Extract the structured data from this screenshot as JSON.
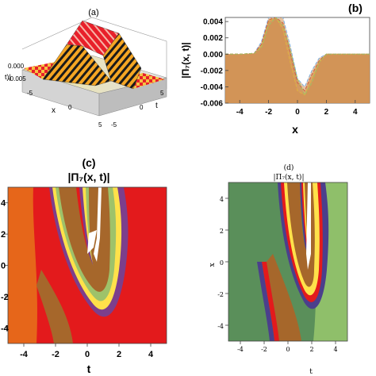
{
  "colors": {
    "background": "#ffffff",
    "checker_a": "#e8202a",
    "checker_b": "#f5c242",
    "stripe_dark": "#1a1a1a",
    "surface_floor": "#e0e0e0",
    "b_fill": "#cf8f50",
    "c_red": "#e31a1c",
    "c_orange": "#e6661a",
    "c_brown": "#a6672b",
    "d_green": "#5a8f5a",
    "d_lightgreen": "#8fbf6a",
    "d_red": "#e31a1c",
    "d_yellow": "#ffe14a",
    "d_blue": "#4b3f8c"
  },
  "chart_data": [
    {
      "panel": "a",
      "type": "surface3d",
      "title": "(a)",
      "xlabel": "x",
      "ylabel": "t",
      "zlabel": "t)|",
      "x_ticks": [
        "-5",
        "0",
        "5"
      ],
      "y_ticks": [
        "-5",
        "0",
        "5"
      ],
      "z_ticks": [
        "0.000",
        "-0.005"
      ]
    },
    {
      "panel": "b",
      "type": "line",
      "title": "(b)",
      "xlabel": "x",
      "ylabel": "|Π₇(x,  t)|",
      "xlim": [
        -5,
        5
      ],
      "ylim": [
        -0.006,
        0.0045
      ],
      "x_ticks": [
        "-4",
        "-2",
        "0",
        "2",
        "4"
      ],
      "y_ticks": [
        "0.004",
        "0.002",
        "0.000",
        "-0.002",
        "-0.004",
        "-0.006"
      ],
      "y_tick_values": [
        0.004,
        0.002,
        0,
        -0.002,
        -0.004,
        -0.006
      ],
      "x_tick_values": [
        -4,
        -2,
        0,
        2,
        4
      ],
      "x": [
        -5,
        -4,
        -3,
        -2.5,
        -2,
        -1.5,
        -1,
        -0.5,
        0,
        0.5,
        1,
        1.5,
        2,
        3,
        4,
        5
      ],
      "series": [
        {
          "values": [
            0,
            0,
            0.0001,
            0.0015,
            0.0045,
            0.0045,
            0.0045,
            0.001,
            -0.003,
            -0.004,
            -0.002,
            -0.0005,
            0,
            0,
            0,
            0
          ]
        },
        {
          "values": [
            0,
            0,
            0.0001,
            0.001,
            0.004,
            0.0045,
            0.003,
            -0.001,
            -0.0045,
            -0.005,
            -0.003,
            -0.001,
            0,
            0,
            0,
            0
          ]
        },
        {
          "values": [
            0,
            0,
            0.0001,
            0.0012,
            0.0042,
            0.0045,
            0.0038,
            0.0002,
            -0.0035,
            -0.0045,
            -0.0025,
            -0.0008,
            0,
            0,
            0,
            0
          ]
        },
        {
          "values": [
            0,
            0,
            0.0001,
            0.0008,
            0.0035,
            0.0045,
            0.0035,
            0.0005,
            -0.003,
            -0.005,
            -0.0035,
            -0.001,
            0,
            0,
            0,
            0
          ]
        }
      ]
    },
    {
      "panel": "c",
      "type": "heatmap",
      "title": "(c)",
      "subtitle": "|Π₇(x,  t)|",
      "xlabel": "t",
      "xlim": [
        -5,
        5
      ],
      "ylim": [
        -5,
        5
      ],
      "x_ticks": [
        "-4",
        "-2",
        "0",
        "2",
        "4"
      ],
      "x_tick_values": [
        -4,
        -2,
        0,
        2,
        4
      ],
      "y_ticks": [
        "4",
        "2",
        "0",
        "-2",
        "-4"
      ],
      "y_tick_values": [
        4,
        2,
        0,
        -2,
        -4
      ]
    },
    {
      "panel": "d",
      "type": "heatmap",
      "title": "(d)",
      "subtitle": "|Π₇(x,  t)|",
      "xlabel": "t",
      "ylabel": "x",
      "xlim": [
        -5,
        5
      ],
      "ylim": [
        -5,
        5
      ],
      "x_ticks": [
        "-4",
        "-2",
        "0",
        "2",
        "4"
      ],
      "x_tick_values": [
        -4,
        -2,
        0,
        2,
        4
      ],
      "y_ticks": [
        "4",
        "2",
        "0",
        "-2",
        "-4"
      ],
      "y_tick_values": [
        4,
        2,
        0,
        -2,
        -4
      ]
    }
  ]
}
